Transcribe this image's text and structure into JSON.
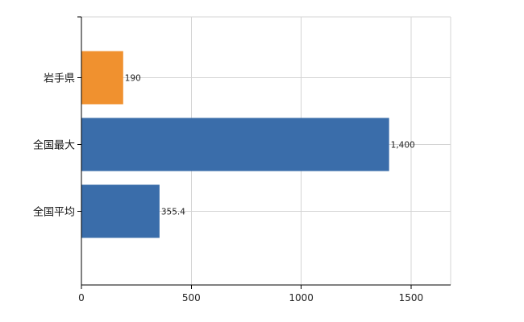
{
  "chart_data": {
    "type": "bar",
    "orientation": "horizontal",
    "categories": [
      "岩手県",
      "全国最大",
      "全国平均"
    ],
    "values": [
      190,
      1400,
      355.4
    ],
    "value_labels": [
      "190",
      "1,400",
      "355.4"
    ],
    "bar_colors": [
      "#F0912F",
      "#3A6DAA",
      "#3A6DAA"
    ],
    "xlim": [
      0,
      1680
    ],
    "x_ticks": [
      0,
      500,
      1000,
      1500
    ],
    "x_tick_labels": [
      "0",
      "500",
      "1000",
      "1500"
    ],
    "title": "",
    "xlabel": "",
    "ylabel": "",
    "grid": true,
    "legend": "none"
  }
}
